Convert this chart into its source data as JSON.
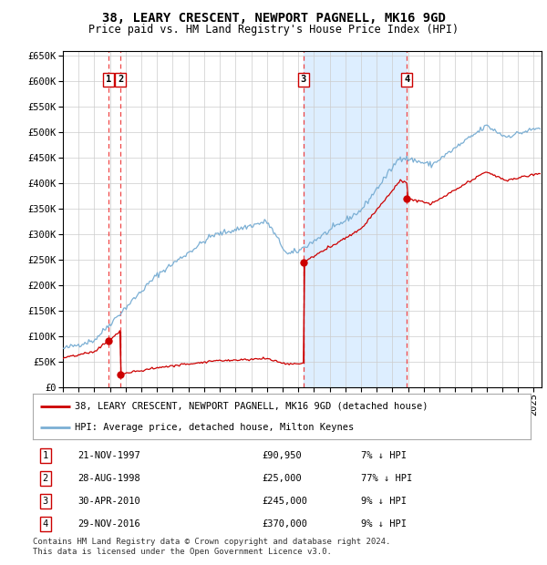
{
  "title": "38, LEARY CRESCENT, NEWPORT PAGNELL, MK16 9GD",
  "subtitle": "Price paid vs. HM Land Registry's House Price Index (HPI)",
  "ylim": [
    0,
    660000
  ],
  "yticks": [
    0,
    50000,
    100000,
    150000,
    200000,
    250000,
    300000,
    350000,
    400000,
    450000,
    500000,
    550000,
    600000,
    650000
  ],
  "xlim_start": 1995.0,
  "xlim_end": 2025.5,
  "red_line_color": "#cc0000",
  "blue_line_color": "#7bafd4",
  "blue_fill_color": "#ddeeff",
  "grid_color": "#cccccc",
  "vline_color": "#ee3333",
  "sale_points": [
    {
      "year": 1997.896,
      "price": 90950,
      "label": "1"
    },
    {
      "year": 1998.66,
      "price": 25000,
      "label": "2"
    },
    {
      "year": 2010.33,
      "price": 245000,
      "label": "3"
    },
    {
      "year": 2016.915,
      "price": 370000,
      "label": "4"
    }
  ],
  "table_rows": [
    {
      "num": "1",
      "date": "21-NOV-1997",
      "price": "£90,950",
      "change": "7% ↓ HPI"
    },
    {
      "num": "2",
      "date": "28-AUG-1998",
      "price": "£25,000",
      "change": "77% ↓ HPI"
    },
    {
      "num": "3",
      "date": "30-APR-2010",
      "price": "£245,000",
      "change": "9% ↓ HPI"
    },
    {
      "num": "4",
      "date": "29-NOV-2016",
      "price": "£370,000",
      "change": "9% ↓ HPI"
    }
  ],
  "legend_red": "38, LEARY CRESCENT, NEWPORT PAGNELL, MK16 9GD (detached house)",
  "legend_blue": "HPI: Average price, detached house, Milton Keynes",
  "footnote": "Contains HM Land Registry data © Crown copyright and database right 2024.\nThis data is licensed under the Open Government Licence v3.0.",
  "shaded_region": [
    2010.33,
    2016.915
  ],
  "vline_positions": [
    1997.896,
    1998.66,
    2010.33,
    2016.915
  ]
}
